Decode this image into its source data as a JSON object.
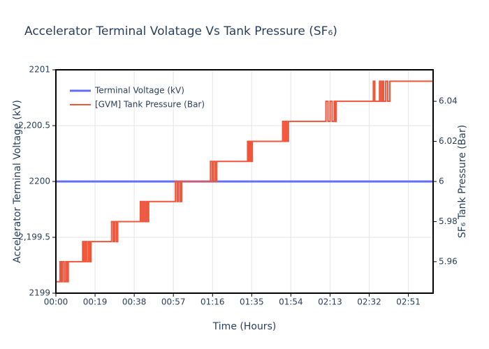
{
  "chart_data": {
    "type": "line",
    "title": "Accelerator Terminal Volatage Vs Tank Pressure (SF₆)",
    "x_label": "Time (Hours)",
    "y_label": "Accelerator Terminal Voltage (kV)",
    "y2_label": "SF₆ Tank Pressure (Bar)",
    "xlim": [
      0,
      183
    ],
    "xticks": [
      {
        "value": 0,
        "label": "00:00"
      },
      {
        "value": 19,
        "label": "00:19"
      },
      {
        "value": 38,
        "label": "00:38"
      },
      {
        "value": 57,
        "label": "00:57"
      },
      {
        "value": 76,
        "label": "01:16"
      },
      {
        "value": 95,
        "label": "01:35"
      },
      {
        "value": 114,
        "label": "01:54"
      },
      {
        "value": 133,
        "label": "02:13"
      },
      {
        "value": 152,
        "label": "02:32"
      },
      {
        "value": 171,
        "label": "02:51"
      }
    ],
    "ylim": [
      2199,
      2201
    ],
    "yticks": [
      2199,
      {
        "value": 2199.5,
        "label": "2,199.5"
      },
      2200,
      {
        "value": 2200.5,
        "label": "2,200.5"
      },
      2201
    ],
    "y2lim": [
      5.9443,
      6.0557
    ],
    "y2ticks": [
      5.96,
      5.98,
      6,
      6.02,
      6.04
    ],
    "grid": true,
    "legend": "top-left",
    "series": [
      {
        "name": "Terminal Voltage (kV)",
        "color": "#636efa",
        "step": false,
        "x": [
          0,
          183
        ],
        "values": [
          2200,
          2200
        ]
      },
      {
        "name": "[GVM] Tank Pressure (Bar)",
        "color": "#ef553b",
        "axis": "y2",
        "step": true,
        "x": [
          0,
          2,
          2.6,
          3.2,
          4,
          4.8,
          5.5,
          6,
          13,
          13.6,
          14.3,
          15,
          15.8,
          16.5,
          17,
          27,
          27.8,
          28.5,
          29.3,
          30,
          41,
          41.7,
          42.4,
          43.1,
          43.8,
          44.5,
          45,
          58,
          58.8,
          59.5,
          60.3,
          61,
          75,
          75.8,
          76.5,
          77.3,
          78,
          93,
          93.6,
          94.2,
          94.8,
          95.3,
          110,
          110.7,
          111.4,
          112.1,
          112.8,
          131,
          132,
          133,
          134,
          135,
          135.6,
          136,
          154,
          154.7,
          157,
          157.7,
          158.4,
          159,
          160,
          161,
          162,
          183
        ],
        "values": [
          5.95,
          5.96,
          5.95,
          5.96,
          5.95,
          5.96,
          5.95,
          5.96,
          5.97,
          5.96,
          5.97,
          5.96,
          5.97,
          5.96,
          5.97,
          5.98,
          5.97,
          5.98,
          5.97,
          5.98,
          5.99,
          5.98,
          5.99,
          5.98,
          5.99,
          5.98,
          5.99,
          6.0,
          5.99,
          6.0,
          5.99,
          6.0,
          6.01,
          6.0,
          6.01,
          6.0,
          6.01,
          6.02,
          6.01,
          6.02,
          6.01,
          6.02,
          6.03,
          6.02,
          6.03,
          6.02,
          6.03,
          6.04,
          6.03,
          6.04,
          6.03,
          6.04,
          6.03,
          6.04,
          6.05,
          6.04,
          6.05,
          6.04,
          6.05,
          6.04,
          6.05,
          6.04,
          6.05,
          6.05
        ]
      }
    ]
  }
}
